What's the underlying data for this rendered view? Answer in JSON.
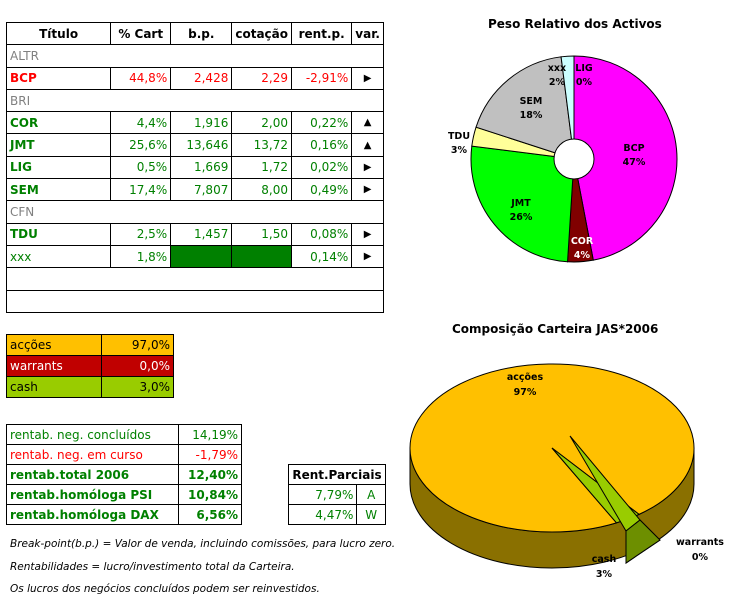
{
  "table": {
    "headers": [
      "Título",
      "% Cart",
      "b.p.",
      "cotação",
      "rent.p.",
      "var."
    ],
    "rows": [
      {
        "ticker": "ALTR",
        "type": "group"
      },
      {
        "ticker": "BCP",
        "pct": "44,8%",
        "bp": "2,428",
        "cot": "2,29",
        "rent": "-2,91%",
        "var": "right",
        "color": "#ff0000"
      },
      {
        "ticker": "BRI",
        "type": "group"
      },
      {
        "ticker": "COR",
        "pct": "4,4%",
        "bp": "1,916",
        "cot": "2,00",
        "rent": "0,22%",
        "var": "up",
        "color": "#008000"
      },
      {
        "ticker": "JMT",
        "pct": "25,6%",
        "bp": "13,646",
        "cot": "13,72",
        "rent": "0,16%",
        "var": "up",
        "color": "#008000"
      },
      {
        "ticker": "LIG",
        "pct": "0,5%",
        "bp": "1,669",
        "cot": "1,72",
        "rent": "0,02%",
        "var": "right",
        "color": "#008000"
      },
      {
        "ticker": "SEM",
        "pct": "17,4%",
        "bp": "7,807",
        "cot": "8,00",
        "rent": "0,49%",
        "var": "right",
        "color": "#008000"
      },
      {
        "ticker": "CFN",
        "type": "group"
      },
      {
        "ticker": "TDU",
        "pct": "2,5%",
        "bp": "1,457",
        "cot": "1,50",
        "rent": "0,08%",
        "var": "right",
        "color": "#008000"
      },
      {
        "ticker": "xxx",
        "pct": "1,8%",
        "bp": "",
        "cot": "",
        "rent": "0,14%",
        "var": "right",
        "color": "#008000",
        "filled": true
      },
      {
        "ticker": "",
        "type": "blank"
      },
      {
        "ticker": "",
        "type": "blank"
      }
    ]
  },
  "allocation": [
    {
      "label": "acções",
      "value": "97,0%",
      "bg": "#ffc000",
      "color": "#000000"
    },
    {
      "label": "warrants",
      "value": "0,0%",
      "bg": "#c00000",
      "color": "#ffffff"
    },
    {
      "label": "cash",
      "value": "3,0%",
      "bg": "#99cc00",
      "color": "#000000"
    }
  ],
  "stats": [
    {
      "label": "rentab. neg. concluídos",
      "value": "14,19%",
      "color": "#008000",
      "bold": false
    },
    {
      "label": "rentab. neg. em curso",
      "value": "-1,79%",
      "color": "#ff0000",
      "bold": false
    },
    {
      "label": "rentab.total 2006",
      "value": "12,40%",
      "color": "#008000",
      "bold": true
    },
    {
      "label": "rentab.homóloga PSI",
      "value": "10,84%",
      "color": "#008000",
      "bold": true
    },
    {
      "label": "rentab.homóloga DAX",
      "value": "6,56%",
      "color": "#008000",
      "bold": true
    }
  ],
  "parciais": {
    "header": "Rent.Parciais",
    "rows": [
      {
        "value": "7,79%",
        "idx": "A"
      },
      {
        "value": "4,47%",
        "idx": "W"
      }
    ]
  },
  "notes": [
    "Break-point(b.p.) = Valor de venda, incluindo comissões, para lucro zero.",
    "Rentabilidades = lucro/investimento total da Carteira.",
    "Os lucros dos negócios concluídos podem ser reinvestidos."
  ],
  "colors": {
    "green": "#008000",
    "red": "#ff0000",
    "gray": "#808080",
    "dark_green_fill": "#008000"
  },
  "chart_data": [
    {
      "type": "pie",
      "title": "Peso Relativo dos Activos",
      "categories": [
        "BCP",
        "COR",
        "JMT",
        "TDU",
        "SEM",
        "xxx",
        "LIG"
      ],
      "values": [
        47,
        4,
        26,
        3,
        18,
        2,
        0
      ],
      "labels": [
        "BCP\n47%",
        "COR\n4%",
        "JMT\n26%",
        "TDU\n3%",
        "SEM\n18%",
        "xxx\n2%",
        "LIG\n0%"
      ],
      "colors": [
        "#ff00ff",
        "#800000",
        "#00ff00",
        "#ffff99",
        "#c0c0c0",
        "#ccffff",
        "#00ccff"
      ],
      "donut": true
    },
    {
      "type": "pie",
      "title": "Composição Carteira JAS*2006",
      "categories": [
        "acções",
        "warrants",
        "cash"
      ],
      "values": [
        97,
        0,
        3
      ],
      "labels": [
        "acções\n97%",
        "warrants\n0%",
        "cash\n3%"
      ],
      "colors": [
        "#ffc000",
        "#c00000",
        "#99cc00"
      ],
      "three_d": true
    }
  ]
}
